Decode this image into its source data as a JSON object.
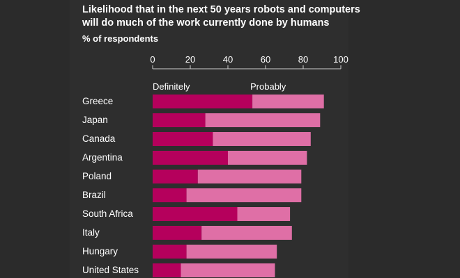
{
  "header": {
    "title_line1": "Likelihood that in the next 50 years robots and computers",
    "title_line2": "will do much of the work currently done by humans",
    "subtitle": "% of respondents"
  },
  "colors": {
    "background": "#2b2b2b",
    "definitely": "#b5005c",
    "probably": "#df6fa6",
    "text": "#ffffff"
  },
  "chart_data": {
    "type": "bar",
    "orientation": "horizontal",
    "stacked": true,
    "title": "Likelihood that in the next 50 years robots and computers will do much of the work currently done by humans",
    "subtitle": "% of respondents",
    "xlim": [
      0,
      100
    ],
    "xticks": [
      0,
      20,
      40,
      60,
      80,
      100
    ],
    "grid": false,
    "legend_placement": "top",
    "categories": [
      "Greece",
      "Japan",
      "Canada",
      "Argentina",
      "Poland",
      "Brazil",
      "South Africa",
      "Italy",
      "Hungary",
      "United States"
    ],
    "series": [
      {
        "name": "Definitely",
        "values": [
          53,
          28,
          32,
          40,
          24,
          18,
          45,
          26,
          18,
          15
        ]
      },
      {
        "name": "Probably",
        "values": [
          38,
          61,
          52,
          42,
          55,
          61,
          28,
          48,
          48,
          50
        ]
      }
    ]
  }
}
